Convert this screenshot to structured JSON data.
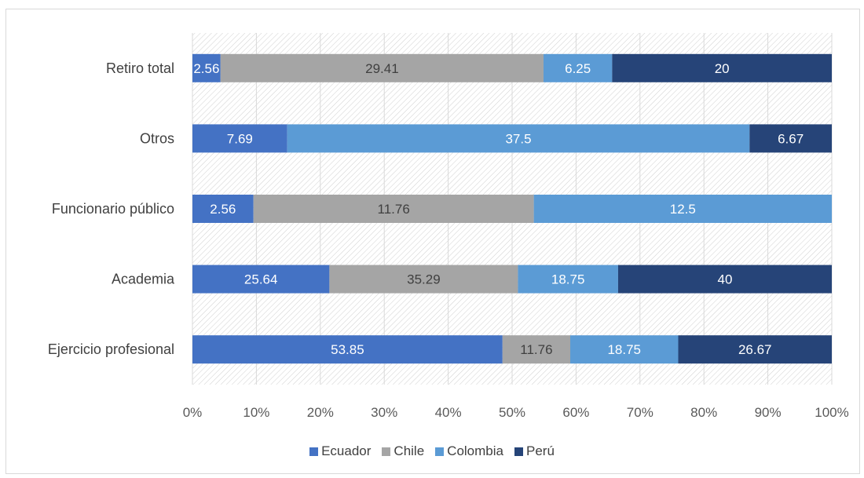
{
  "chart_data": {
    "type": "bar",
    "orientation": "horizontal",
    "stacked": "percent",
    "categories": [
      "Retiro total",
      "Otros",
      "Funcionario público",
      "Academia",
      "Ejercicio profesional"
    ],
    "series": [
      {
        "name": "Ecuador",
        "color": "#4472C4",
        "values": [
          2.56,
          7.69,
          2.56,
          25.64,
          53.85
        ]
      },
      {
        "name": "Chile",
        "color": "#A5A5A5",
        "values": [
          29.41,
          null,
          11.76,
          35.29,
          11.76
        ]
      },
      {
        "name": "Colombia",
        "color": "#5B9BD5",
        "values": [
          6.25,
          37.5,
          12.5,
          18.75,
          18.75
        ]
      },
      {
        "name": "Perú",
        "color": "#264478",
        "values": [
          20,
          6.67,
          null,
          40,
          26.67
        ]
      }
    ],
    "x_ticks": [
      "0%",
      "10%",
      "20%",
      "30%",
      "40%",
      "50%",
      "60%",
      "70%",
      "80%",
      "90%",
      "100%"
    ],
    "xlim": [
      0,
      100
    ],
    "grid": true,
    "legend": "bottom",
    "background_pattern": "diagonal hatch"
  }
}
